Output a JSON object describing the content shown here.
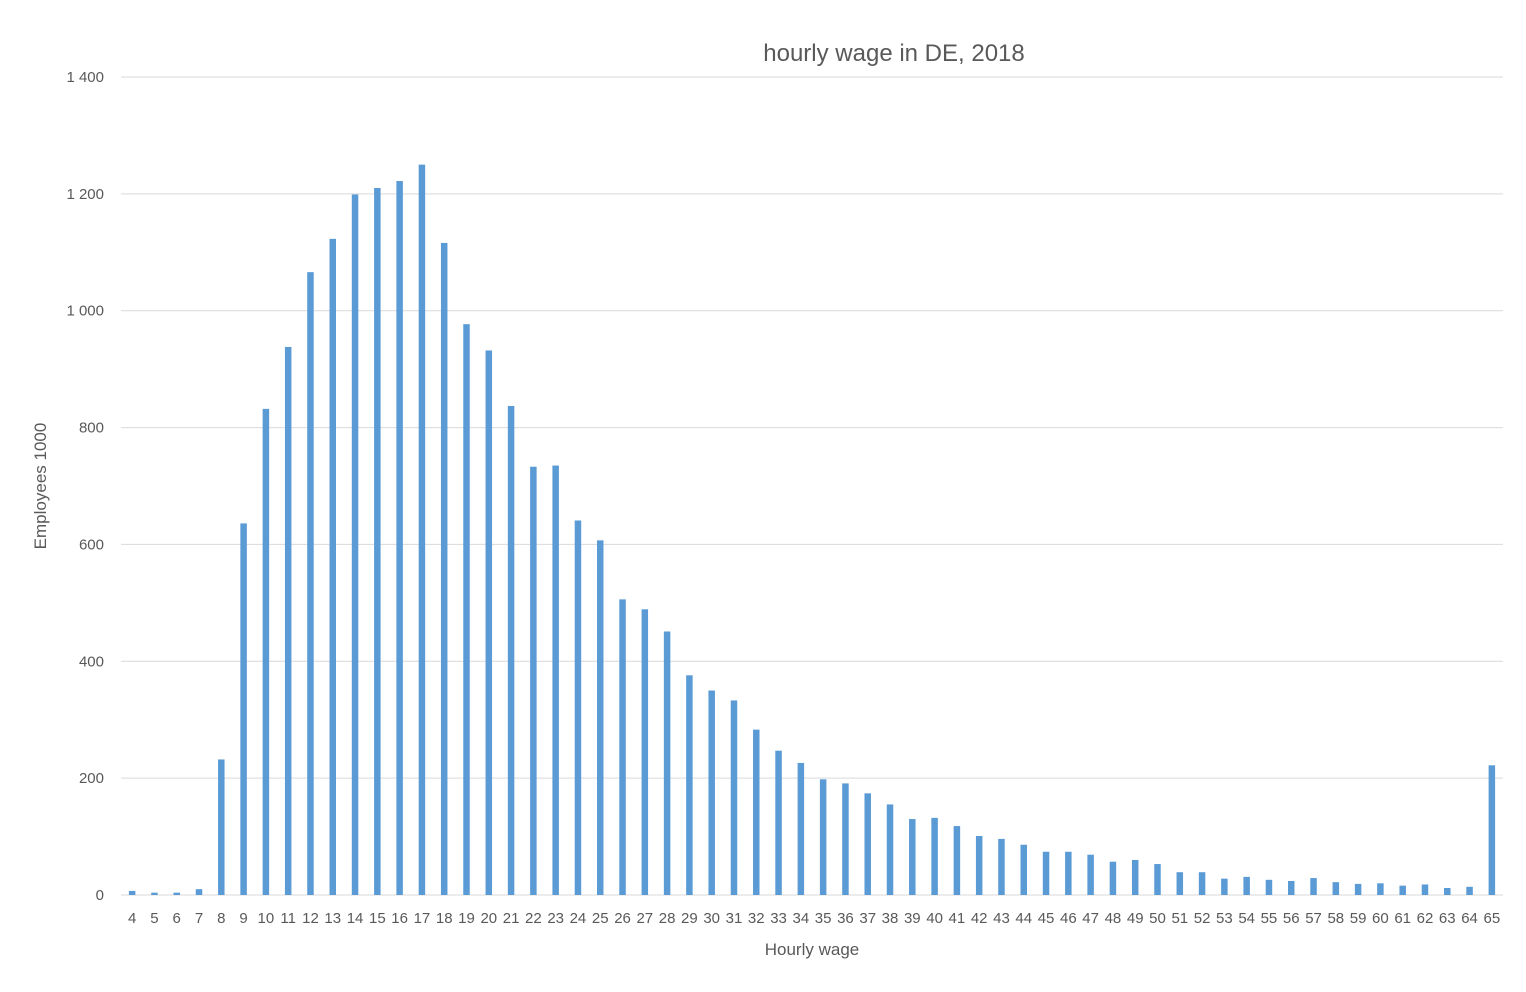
{
  "chart_data": {
    "type": "bar",
    "title": "hourly wage in DE, 2018",
    "xlabel": "Hourly wage",
    "ylabel": "Employees 1000",
    "ylim": [
      0,
      1400
    ],
    "yticks": [
      0,
      200,
      400,
      600,
      800,
      1000,
      1200,
      1400
    ],
    "ytick_labels": [
      "0",
      "200",
      "400",
      "600",
      "800",
      "1 000",
      "1 200",
      "1 400"
    ],
    "grid": true,
    "legend": "none",
    "bar_color": "#5B9BD5",
    "grid_color": "#D9D9D9",
    "categories": [
      "4",
      "5",
      "6",
      "7",
      "8",
      "9",
      "10",
      "11",
      "12",
      "13",
      "14",
      "15",
      "16",
      "17",
      "18",
      "19",
      "20",
      "21",
      "22",
      "23",
      "24",
      "25",
      "26",
      "27",
      "28",
      "29",
      "30",
      "31",
      "32",
      "33",
      "34",
      "35",
      "36",
      "37",
      "38",
      "39",
      "40",
      "41",
      "42",
      "43",
      "44",
      "45",
      "46",
      "47",
      "48",
      "49",
      "50",
      "51",
      "52",
      "53",
      "54",
      "55",
      "56",
      "57",
      "58",
      "59",
      "60",
      "61",
      "62",
      "63",
      "64",
      "65"
    ],
    "values": [
      7,
      4,
      4,
      10,
      232,
      636,
      832,
      938,
      1066,
      1123,
      1199,
      1210,
      1222,
      1250,
      1116,
      977,
      932,
      837,
      733,
      735,
      641,
      607,
      506,
      489,
      451,
      376,
      350,
      333,
      283,
      247,
      226,
      198,
      191,
      174,
      155,
      130,
      132,
      118,
      101,
      96,
      86,
      74,
      74,
      69,
      57,
      60,
      53,
      39,
      39,
      28,
      31,
      26,
      24,
      29,
      22,
      19,
      20,
      16,
      18,
      12,
      14,
      222
    ]
  }
}
